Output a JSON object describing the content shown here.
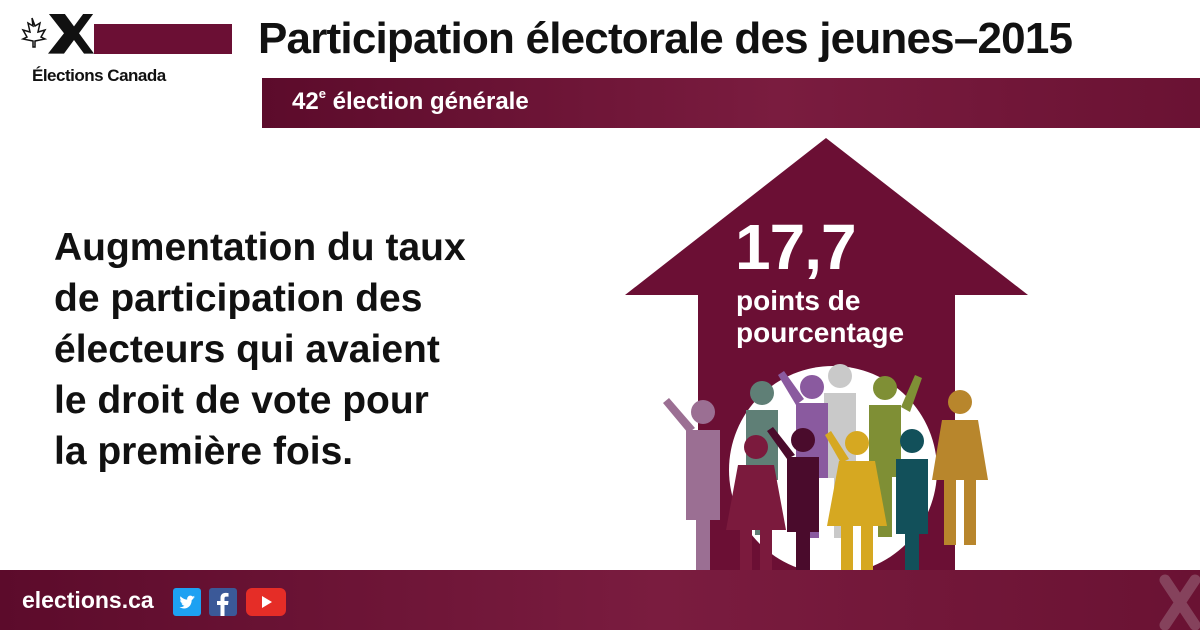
{
  "logo": {
    "text": "Élections Canada",
    "icon": "elections-canada-logo"
  },
  "header": {
    "title": "Participation électorale des jeunes–2015",
    "subtitle_number": "42",
    "subtitle_sup": "e",
    "subtitle_rest": " élection générale"
  },
  "main": {
    "lines": [
      "Augmentation du taux",
      "de participation des",
      "électeurs qui avaient",
      "le droit de vote pour",
      "la première fois."
    ]
  },
  "stat": {
    "value": "17,7",
    "label_line1": "points de",
    "label_line2": "pourcentage"
  },
  "footer": {
    "url": "elections.ca",
    "social": [
      "twitter-icon",
      "facebook-icon",
      "youtube-icon"
    ]
  },
  "colors": {
    "brand": "#6b0f34",
    "brand_dark": "#5c0b2b",
    "people": [
      "#9b6f93",
      "#5f7f76",
      "#8a5a9f",
      "#c9c9c9",
      "#7f8f35",
      "#b8862c",
      "#7b1a3d",
      "#4a0b2c",
      "#d6a821",
      "#12505a"
    ]
  }
}
